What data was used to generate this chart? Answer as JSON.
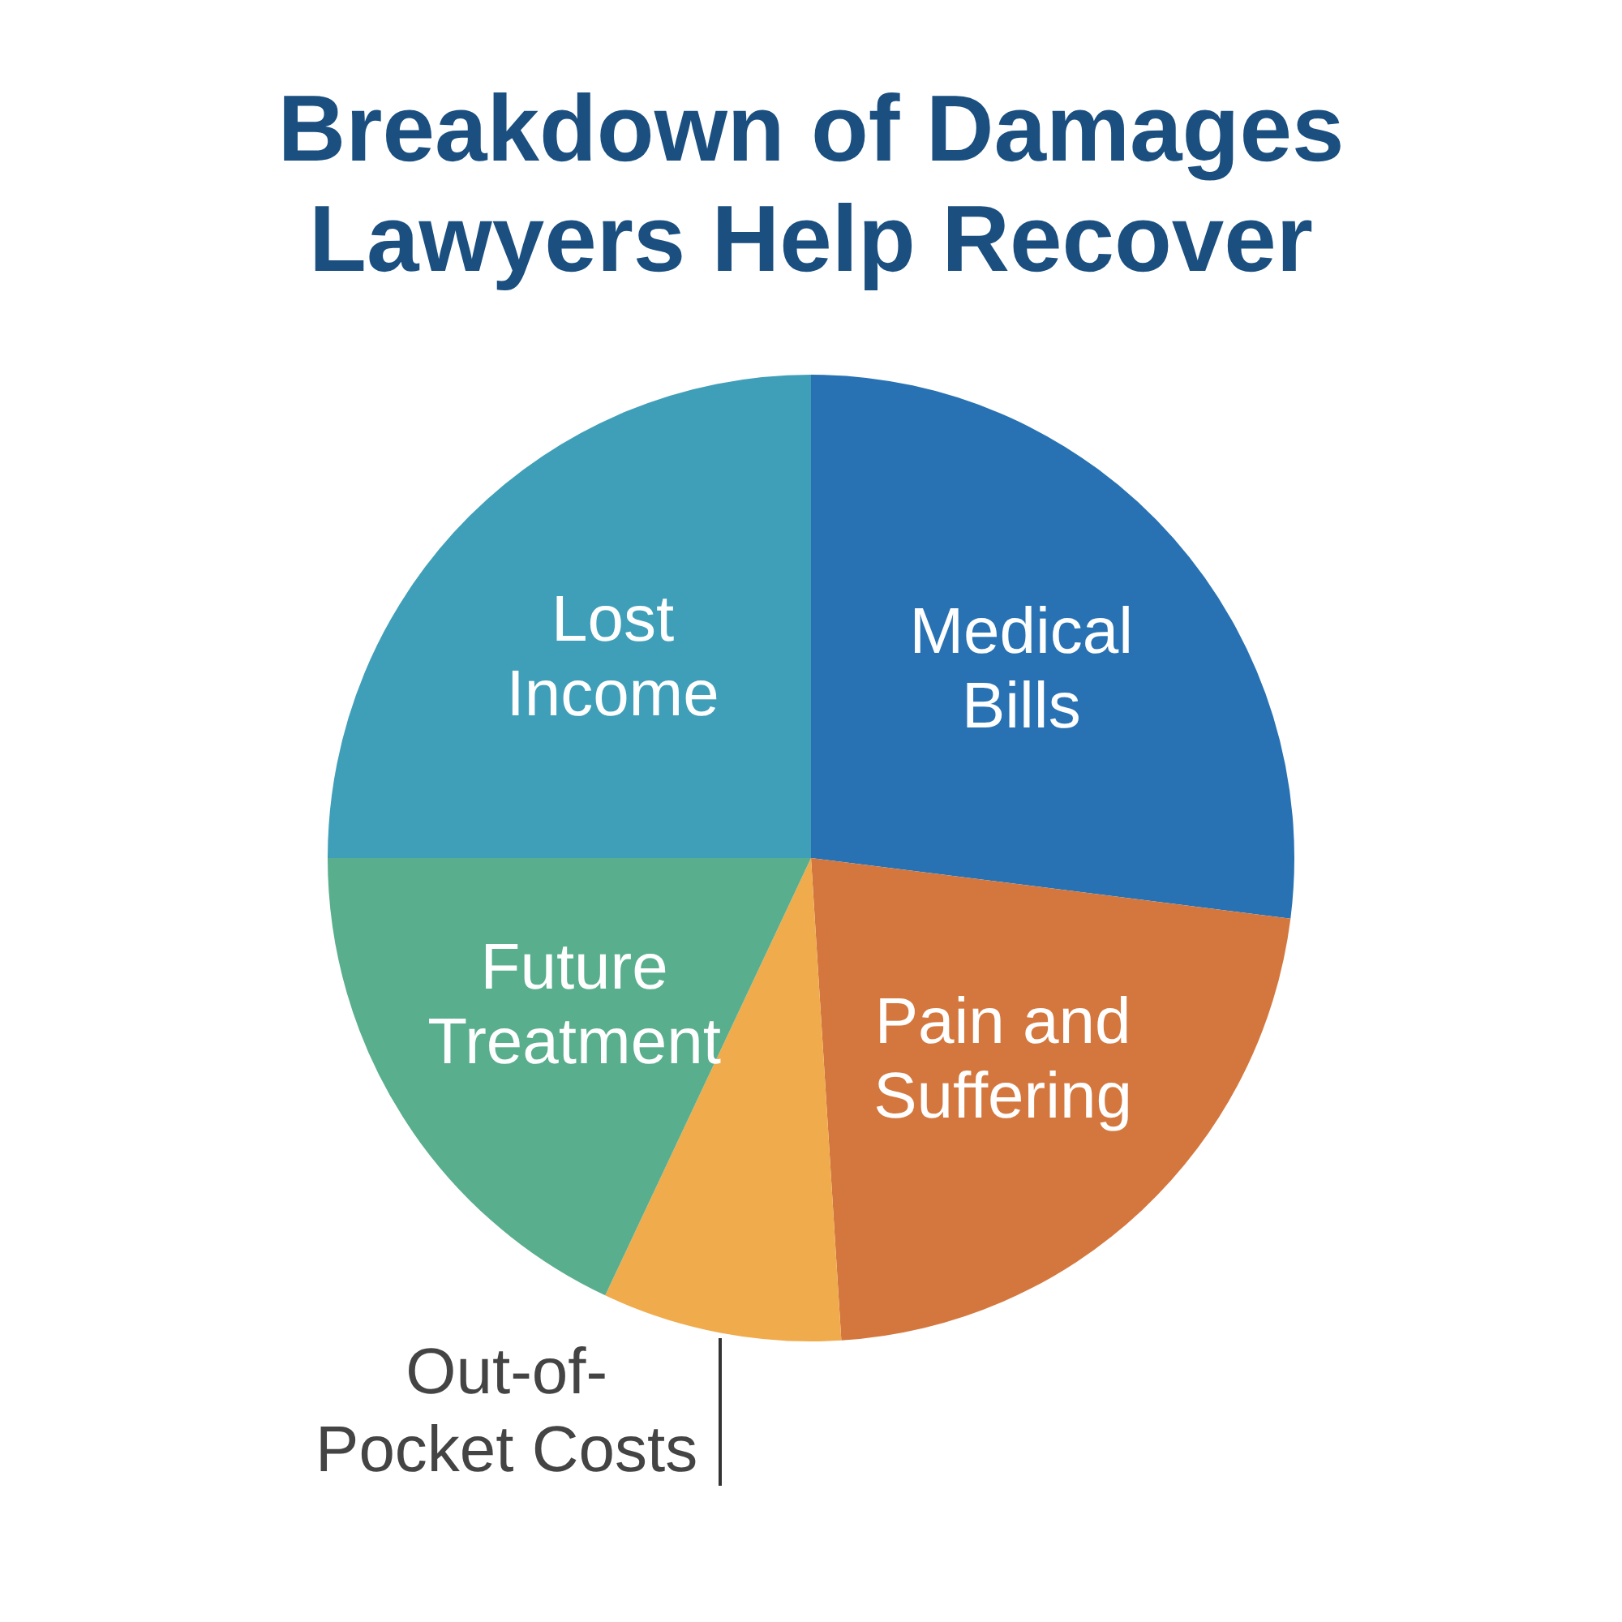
{
  "chart_data": {
    "type": "pie",
    "title": "Breakdown of Damages Lawyers Help Recover",
    "categories": [
      "Medical Bills",
      "Pain and Suffering",
      "Out-of-Pocket Costs",
      "Future Treatment",
      "Lost Income"
    ],
    "values": [
      27,
      22,
      8,
      18,
      25
    ],
    "colors": [
      "#2872b3",
      "#d4773e",
      "#f0ab4c",
      "#59ae8e",
      "#3f9fb8"
    ]
  }
}
